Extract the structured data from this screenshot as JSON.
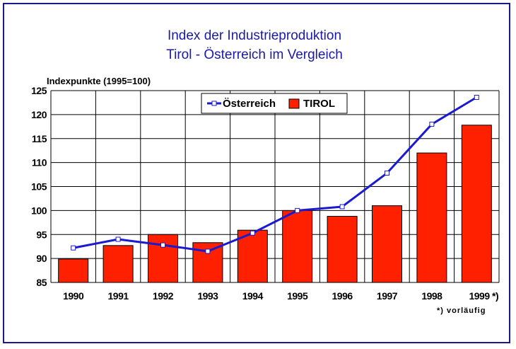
{
  "chart_data": {
    "type": "bar",
    "title": "Index der Industrieproduktion",
    "subtitle": "Tirol - Österreich im Vergleich",
    "ylabel": "Indexpunkte (1995=100)",
    "categories": [
      "1990",
      "1991",
      "1992",
      "1993",
      "1994",
      "1995",
      "1996",
      "1997",
      "1998",
      "1999 *)"
    ],
    "highlight_category": "1995",
    "highlight_color": "#e82000",
    "ylim": [
      85,
      125
    ],
    "yticks": [
      85,
      90,
      95,
      100,
      105,
      110,
      115,
      120,
      125
    ],
    "highlight_ytick": 100,
    "grid": true,
    "legend_position": "top-center",
    "series": [
      {
        "name": "Österreich",
        "type": "line",
        "color": "#1a1ad0",
        "values": [
          92.2,
          94.0,
          92.8,
          91.5,
          95.3,
          100.0,
          100.8,
          107.8,
          118.0,
          123.6
        ]
      },
      {
        "name": "TIROL",
        "type": "bar",
        "color": "#ff2000",
        "values": [
          89.9,
          92.7,
          95.0,
          93.3,
          95.9,
          100.0,
          98.8,
          101.0,
          112.0,
          117.8
        ]
      }
    ],
    "footnote": "*) vorläufig"
  }
}
